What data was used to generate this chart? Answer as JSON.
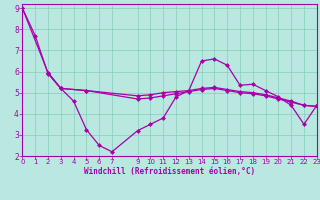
{
  "xlabel": "Windchill (Refroidissement éolien,°C)",
  "bg_color": "#b8e8e0",
  "line_color": "#aa00aa",
  "grid_color": "#88ccbb",
  "series": {
    "line1_x": [
      0,
      1,
      2,
      3,
      4,
      5,
      6,
      7,
      9,
      10,
      11,
      12,
      13,
      14,
      15,
      16,
      17,
      18,
      19,
      20,
      21,
      22,
      23
    ],
    "line1_y": [
      9.0,
      7.7,
      5.9,
      5.2,
      4.6,
      3.25,
      2.5,
      2.2,
      3.2,
      3.5,
      3.8,
      4.8,
      5.1,
      6.5,
      6.6,
      6.3,
      5.35,
      5.4,
      5.1,
      4.8,
      4.4,
      3.5,
      4.4
    ],
    "line2_x": [
      2,
      3,
      5,
      9,
      10,
      11,
      12,
      13,
      14,
      15,
      16,
      17,
      18,
      19,
      20,
      21,
      22,
      23
    ],
    "line2_y": [
      5.95,
      5.2,
      5.1,
      4.85,
      4.9,
      5.0,
      5.05,
      5.1,
      5.2,
      5.25,
      5.15,
      5.05,
      5.0,
      4.9,
      4.75,
      4.6,
      4.4,
      4.35
    ],
    "line3_x": [
      0,
      2,
      3,
      5,
      9,
      10,
      11,
      12,
      13,
      14,
      15,
      16,
      17,
      18,
      19,
      20,
      21,
      22,
      23
    ],
    "line3_y": [
      9.0,
      5.95,
      5.2,
      5.1,
      4.7,
      4.75,
      4.85,
      4.95,
      5.05,
      5.15,
      5.2,
      5.1,
      5.0,
      4.95,
      4.85,
      4.7,
      4.55,
      4.4,
      4.35
    ]
  },
  "xlim": [
    0,
    23
  ],
  "ylim": [
    2.0,
    9.2
  ],
  "yticks": [
    2,
    3,
    4,
    5,
    6,
    7,
    8,
    9
  ],
  "xticks": [
    0,
    1,
    2,
    3,
    4,
    5,
    6,
    7,
    9,
    10,
    11,
    12,
    13,
    14,
    15,
    16,
    17,
    18,
    19,
    20,
    21,
    22,
    23
  ],
  "tick_fontsize": 5.0,
  "xlabel_fontsize": 5.5,
  "marker_size": 2.5,
  "line_width": 0.9
}
